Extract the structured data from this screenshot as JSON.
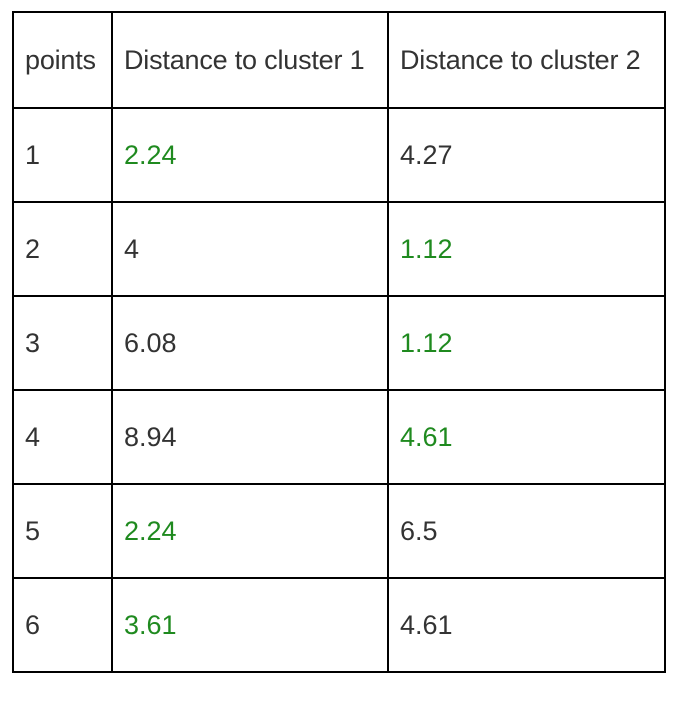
{
  "table": {
    "headers": [
      "points",
      "Distance to cluster 1",
      "Distance to cluster 2"
    ],
    "rows": [
      {
        "point": "1",
        "d1": "2.24",
        "d2": "4.27",
        "closest": 1
      },
      {
        "point": "2",
        "d1": "4",
        "d2": "1.12",
        "closest": 2
      },
      {
        "point": "3",
        "d1": "6.08",
        "d2": "1.12",
        "closest": 2
      },
      {
        "point": "4",
        "d1": "8.94",
        "d2": "4.61",
        "closest": 2
      },
      {
        "point": "5",
        "d1": "2.24",
        "d2": "6.5",
        "closest": 1
      },
      {
        "point": "6",
        "d1": "3.61",
        "d2": "4.61",
        "closest": 1
      }
    ]
  },
  "colors": {
    "highlight": "#1f8a1f",
    "text": "#333333",
    "border": "#000000"
  }
}
